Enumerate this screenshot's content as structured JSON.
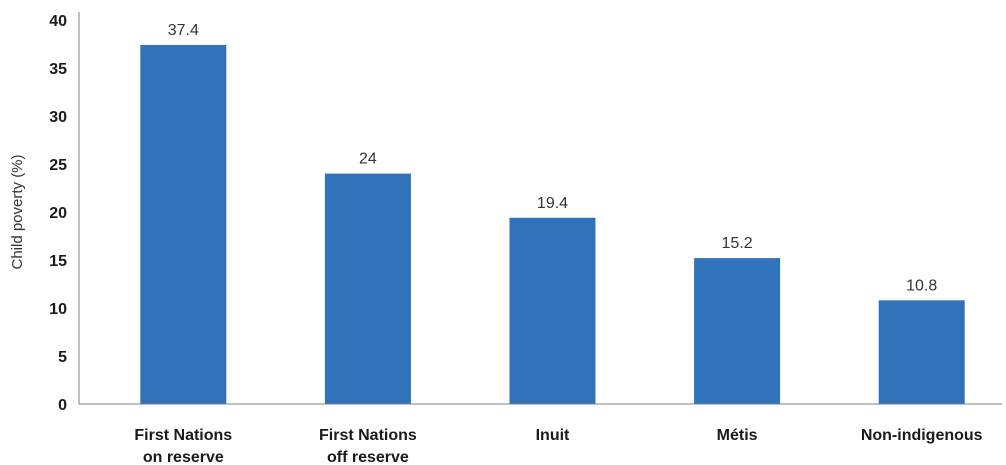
{
  "chart_data": {
    "type": "bar",
    "title": "",
    "xlabel": "",
    "ylabel": "Child poverty (%)",
    "categories": [
      [
        "First Nations",
        "on reserve"
      ],
      [
        "First Nations",
        "off reserve"
      ],
      [
        "Inuit"
      ],
      [
        "Métis"
      ],
      [
        "Non-indigenous"
      ]
    ],
    "values": [
      37.4,
      24,
      19.4,
      15.2,
      10.8
    ],
    "value_labels": [
      "37.4",
      "24",
      "19.4",
      "15.2",
      "10.8"
    ],
    "ylim": [
      0,
      40
    ],
    "yticks": [
      0,
      5,
      10,
      15,
      20,
      25,
      30,
      35,
      40
    ],
    "bar_color": "#3173bb",
    "grid": false,
    "legend": "none"
  }
}
